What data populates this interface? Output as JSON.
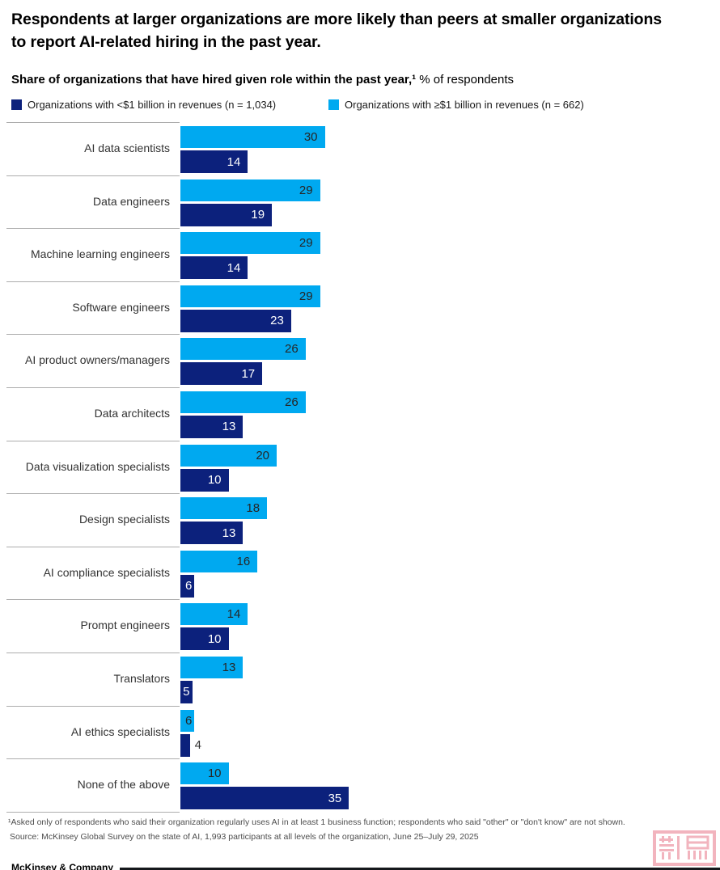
{
  "title": "Respondents at larger organizations are more likely than peers at smaller organizations to report AI-related hiring in the past year.",
  "subtitle": {
    "bold": "Share of organizations that have hired given role within the past year,¹",
    "rest": " % of respondents"
  },
  "legend": [
    {
      "label": "Organizations with <$1 billion in revenues (n = 1,034)",
      "color": "#0C217C"
    },
    {
      "label": "Organizations with ≥$1 billion in revenues (n = 662)",
      "color": "#00A9F0"
    }
  ],
  "chart_data": {
    "type": "bar",
    "orientation": "horizontal",
    "title": "Share of organizations that have hired given role within the past year, % of respondents",
    "xlabel": "% of respondents",
    "ylabel": "",
    "xlim": [
      0,
      35
    ],
    "grid": false,
    "legend_position": "top",
    "categories": [
      "AI data scientists",
      "Data engineers",
      "Machine learning engineers",
      "Software engineers",
      "AI product owners/managers",
      "Data architects",
      "Data visualization specialists",
      "Design specialists",
      "AI compliance specialists",
      "Prompt engineers",
      "Translators",
      "AI ethics specialists",
      "None of the above"
    ],
    "series": [
      {
        "name": "Organizations with ≥$1 billion in revenues (n = 662)",
        "color": "#00A9F0",
        "values": [
          30,
          29,
          29,
          29,
          26,
          26,
          20,
          18,
          16,
          14,
          13,
          6,
          10
        ]
      },
      {
        "name": "Organizations with <$1 billion in revenues (n = 1,034)",
        "color": "#0C217C",
        "values": [
          14,
          19,
          14,
          23,
          17,
          13,
          10,
          13,
          6,
          10,
          5,
          4,
          35
        ]
      }
    ]
  },
  "footnotes": {
    "note1": "¹Asked only of respondents who said their organization regularly uses AI in at least 1 business function; respondents who said \"other\" or \"don't know\" are not shown.",
    "source": "Source: McKinsey Global Survey on the state of AI, 1,993 participants at all levels of the organization, June 25–July 29, 2025"
  },
  "branding": "McKinsey & Company",
  "colors": {
    "bar_large_orgs": "#00A9F0",
    "bar_small_orgs": "#0C217C",
    "separator": "#ADADAD",
    "value_on_light": "#262626",
    "value_on_dark": "#FFFFFF",
    "watermark_pink": "#F0A7B3"
  }
}
